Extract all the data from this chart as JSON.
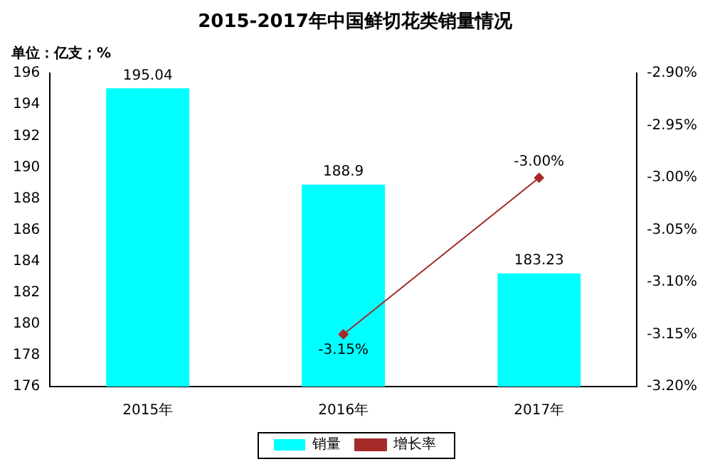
{
  "chart_data": {
    "type": "bar",
    "title": "2015-2017年中国鲜切花类销量情况",
    "annotations": [
      "单位：亿支；%"
    ],
    "categories": [
      "2015年",
      "2016年",
      "2017年"
    ],
    "series": [
      {
        "name": "销量",
        "color": "#00ffff",
        "values": [
          195.04,
          188.9,
          183.23
        ],
        "value_labels": [
          "195.04",
          "188.9",
          "183.23"
        ]
      },
      {
        "name": "增长率",
        "type": "line",
        "axis": "y2",
        "color": "#a52a2a",
        "values": [
          null,
          -3.15,
          -3.0
        ],
        "value_labels": [
          null,
          "-3.15%",
          "-3.00%"
        ],
        "marker": "diamond"
      }
    ],
    "ylim": [
      176,
      196
    ],
    "yticks": [
      176,
      178,
      180,
      182,
      184,
      186,
      188,
      190,
      192,
      194,
      196
    ],
    "y2lim": [
      -3.2,
      -2.9
    ],
    "y2ticks": [
      {
        "value": -3.2,
        "label": "-3.20%"
      },
      {
        "value": -3.15,
        "label": "-3.15%"
      },
      {
        "value": -3.1,
        "label": "-3.10%"
      },
      {
        "value": -3.05,
        "label": "-3.05%"
      },
      {
        "value": -3.0,
        "label": "-3.00%"
      },
      {
        "value": -2.95,
        "label": "-2.95%"
      },
      {
        "value": -2.9,
        "label": "-2.90%"
      }
    ],
    "grid": false,
    "legend": "bottom"
  }
}
